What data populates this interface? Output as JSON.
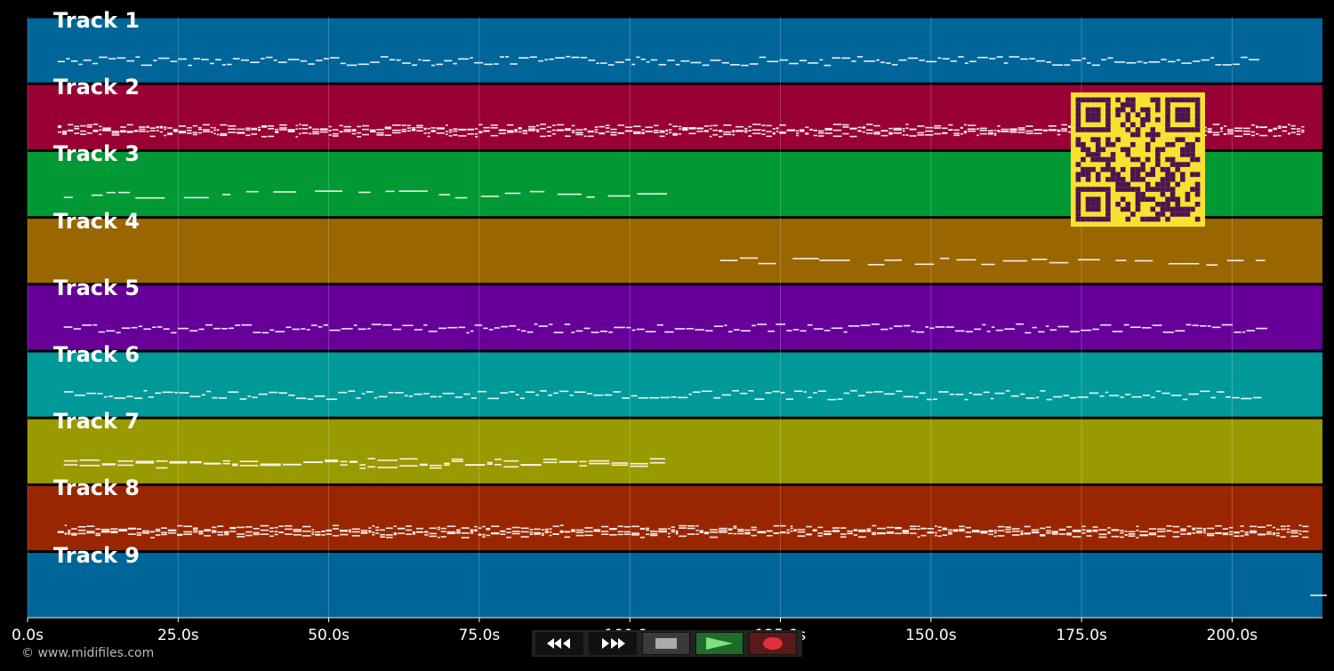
{
  "tracks": [
    {
      "label": "Track 1",
      "color": "#006699"
    },
    {
      "label": "Track 2",
      "color": "#990033"
    },
    {
      "label": "Track 3",
      "color": "#009933"
    },
    {
      "label": "Track 4",
      "color": "#996600"
    },
    {
      "label": "Track 5",
      "color": "#660099"
    },
    {
      "label": "Track 6",
      "color": "#009999"
    },
    {
      "label": "Track 7",
      "color": "#999900"
    },
    {
      "label": "Track 8",
      "color": "#992600"
    },
    {
      "label": "Track 9",
      "color": "#006699"
    }
  ],
  "timeline": {
    "max_seconds": 215,
    "ticks": [
      {
        "value": 0,
        "label": "0.0s"
      },
      {
        "value": 25,
        "label": "25.0s"
      },
      {
        "value": 50,
        "label": "50.0s"
      },
      {
        "value": 75,
        "label": "75.0s"
      },
      {
        "value": 100,
        "label": "100.0s"
      },
      {
        "value": 125,
        "label": "125.0s"
      },
      {
        "value": 150,
        "label": "150.0s"
      },
      {
        "value": 175,
        "label": "175.0s"
      },
      {
        "value": 200,
        "label": "200.0s"
      }
    ]
  },
  "note_ranges": [
    {
      "start": 5,
      "end": 203,
      "style": "melody"
    },
    {
      "start": 5,
      "end": 212,
      "style": "dense"
    },
    {
      "start": 6,
      "end": 108,
      "style": "sparse"
    },
    {
      "start": 115,
      "end": 204,
      "style": "sparse"
    },
    {
      "start": 6,
      "end": 204,
      "style": "melody"
    },
    {
      "start": 6,
      "end": 204,
      "style": "melody"
    },
    {
      "start": 6,
      "end": 106,
      "style": "chords"
    },
    {
      "start": 5,
      "end": 212,
      "style": "dense"
    },
    {
      "start": 213,
      "end": 214,
      "style": "sparse"
    }
  ],
  "transport": {
    "rewind_icon": "rewind-icon",
    "fast_forward_icon": "fast-forward-icon",
    "stop_icon": "stop-icon",
    "play_icon": "play-icon",
    "record_icon": "record-icon"
  },
  "credit": "© www.midifiles.com",
  "qr_code": "qr-code-image"
}
